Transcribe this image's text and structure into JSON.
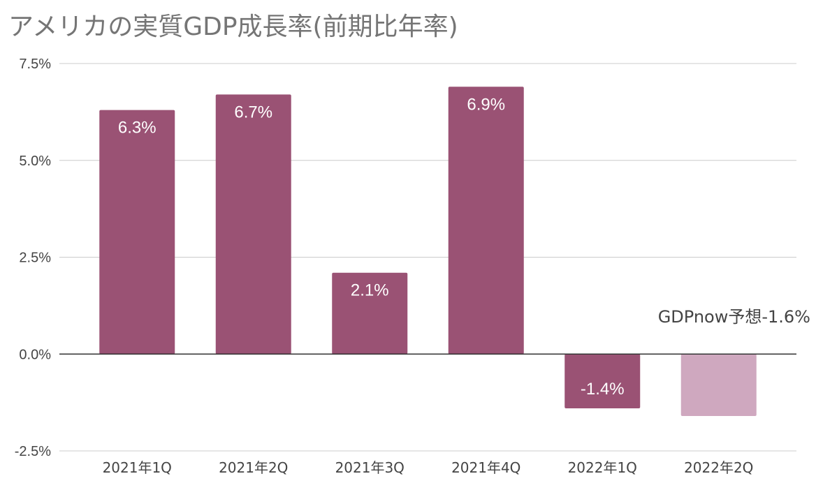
{
  "chart_data": {
    "type": "bar",
    "title": "アメリカの実質GDP成長率(前期比年率)",
    "categories": [
      "2021年1Q",
      "2021年2Q",
      "2021年3Q",
      "2021年4Q",
      "2022年1Q",
      "2022年2Q"
    ],
    "values": [
      6.3,
      6.7,
      2.1,
      6.9,
      -1.4,
      -1.6
    ],
    "data_labels": [
      "6.3%",
      "6.7%",
      "2.1%",
      "6.9%",
      "-1.4%",
      "GDPnow予想-1.6%"
    ],
    "bar_colors": [
      "#9a5274",
      "#9a5274",
      "#9a5274",
      "#9a5274",
      "#9a5274",
      "#cfa8bf"
    ],
    "ylim": [
      -2.5,
      7.5
    ],
    "yticks": [
      7.5,
      5.0,
      2.5,
      0.0,
      -2.5
    ],
    "ytick_labels": [
      "7.5%",
      "5.0%",
      "2.5%",
      "0.0%",
      "-2.5%"
    ],
    "xlabel": "",
    "ylabel": "",
    "grid": true,
    "legend": "none"
  }
}
